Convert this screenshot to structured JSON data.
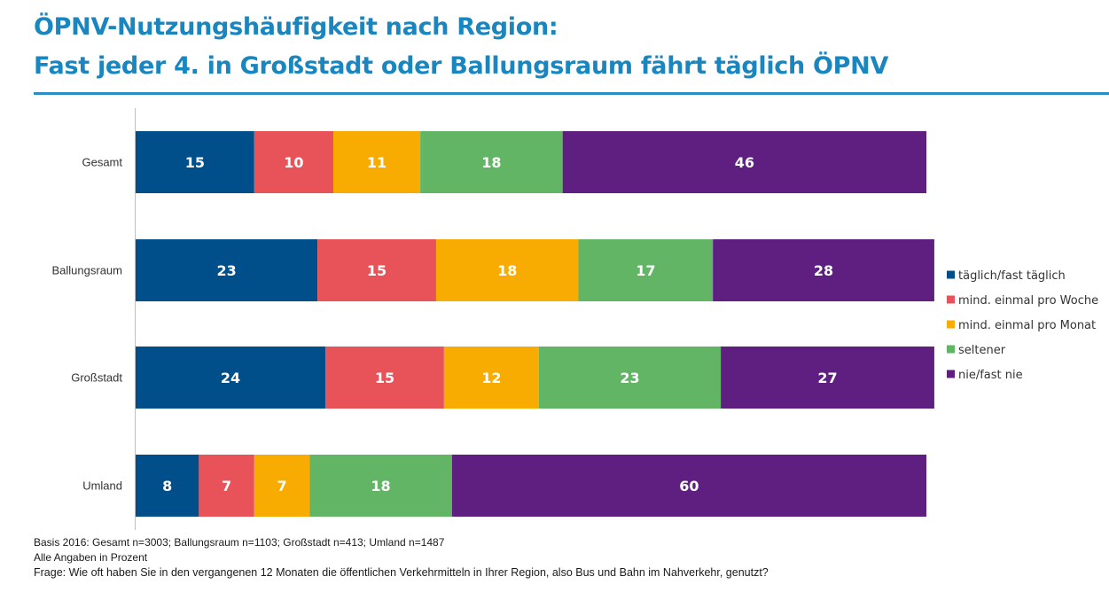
{
  "title": {
    "line1": "ÖPNV-Nutzungshäufigkeit nach Region:",
    "line2": "Fast jeder 4. in Großstadt oder Ballungsraum fährt täglich ÖPNV"
  },
  "chart_data": {
    "type": "bar",
    "orientation": "horizontal",
    "stacked": true,
    "categories": [
      "Gesamt",
      "Ballungsraum",
      "Großstadt",
      "Umland"
    ],
    "series": [
      {
        "name": "täglich/fast täglich",
        "color": "#004f8a",
        "values": [
          15,
          23,
          24,
          8
        ]
      },
      {
        "name": "mind. einmal pro Woche",
        "color": "#e8535a",
        "values": [
          10,
          15,
          15,
          7
        ]
      },
      {
        "name": "mind. einmal pro Monat",
        "color": "#f8ab00",
        "values": [
          11,
          18,
          12,
          7
        ]
      },
      {
        "name": "seltener",
        "color": "#61b564",
        "values": [
          18,
          17,
          23,
          18
        ]
      },
      {
        "name": "nie/fast nie",
        "color": "#5e1f80",
        "values": [
          46,
          28,
          27,
          60
        ]
      }
    ],
    "xlim": [
      0,
      100
    ],
    "grid": false,
    "legend_position": "right"
  },
  "notes": {
    "basis": "Basis  2016: Gesamt n=3003; Ballungsraum n=1103; Großstadt n=413; Umland n=1487",
    "units": "Alle Angaben in Prozent",
    "question": "Frage: Wie oft haben Sie in den vergangenen 12 Monaten die öffentlichen Verkehrmitteln in Ihrer Region, also Bus und Bahn im Nahverkehr, genutzt?"
  }
}
